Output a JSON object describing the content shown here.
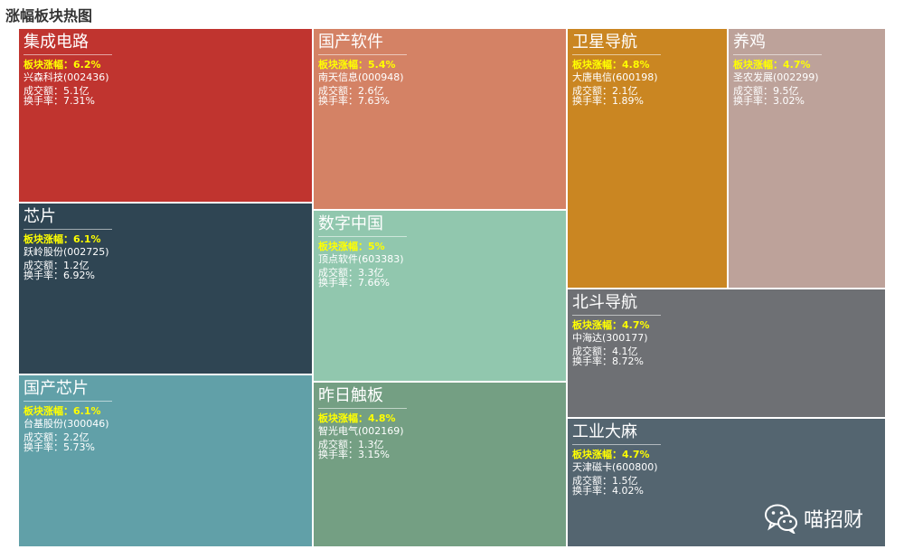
{
  "title": "涨幅板块热图",
  "chart_data": {
    "type": "treemap",
    "title": "涨幅板块热图",
    "metric_label": "板块涨幅",
    "sectors": [
      {
        "name": "集成电路",
        "change_pct": 6.2,
        "change": "板块涨幅：6.2%",
        "stock": "兴森科技(002436)",
        "volume": "成交额：5.1亿",
        "turnover": "换手率：7.31%",
        "color": "#c0342f"
      },
      {
        "name": "芯片",
        "change_pct": 6.1,
        "change": "板块涨幅：6.1%",
        "stock": "跃岭股份(002725)",
        "volume": "成交额：1.2亿",
        "turnover": "换手率：6.92%",
        "color": "#2f4553"
      },
      {
        "name": "国产芯片",
        "change_pct": 6.1,
        "change": "板块涨幅：6.1%",
        "stock": "台基股份(300046)",
        "volume": "成交额：2.2亿",
        "turnover": "换手率：5.73%",
        "color": "#61a0a8"
      },
      {
        "name": "国产软件",
        "change_pct": 5.4,
        "change": "板块涨幅：5.4%",
        "stock": "南天信息(000948)",
        "volume": "成交额：2.6亿",
        "turnover": "换手率：7.63%",
        "color": "#d48265"
      },
      {
        "name": "数字中国",
        "change_pct": 5.0,
        "change": "板块涨幅：5%",
        "stock": "顶点软件(603383)",
        "volume": "成交额：3.3亿",
        "turnover": "换手率：7.66%",
        "color": "#91c7ae"
      },
      {
        "name": "昨日触板",
        "change_pct": 4.8,
        "change": "板块涨幅：4.8%",
        "stock": "智光电气(002169)",
        "volume": "成交额：1.3亿",
        "turnover": "换手率：3.15%",
        "color": "#749f83"
      },
      {
        "name": "卫星导航",
        "change_pct": 4.8,
        "change": "板块涨幅：4.8%",
        "stock": "大唐电信(600198)",
        "volume": "成交额：2.1亿",
        "turnover": "换手率：1.89%",
        "color": "#ca8622"
      },
      {
        "name": "养鸡",
        "change_pct": 4.7,
        "change": "板块涨幅：4.7%",
        "stock": "圣农发展(002299)",
        "volume": "成交额：9.5亿",
        "turnover": "换手率：3.02%",
        "color": "#bda29a"
      },
      {
        "name": "北斗导航",
        "change_pct": 4.7,
        "change": "板块涨幅：4.7%",
        "stock": "中海达(300177)",
        "volume": "成交额：4.1亿",
        "turnover": "换手率：8.72%",
        "color": "#6e7074"
      },
      {
        "name": "工业大麻",
        "change_pct": 4.7,
        "change": "板块涨幅：4.7%",
        "stock": "天津磁卡(600800)",
        "volume": "成交额：1.5亿",
        "turnover": "换手率：4.02%",
        "color": "#546570"
      }
    ]
  },
  "watermark": {
    "text": "喵招财",
    "icon": "wechat-icon"
  }
}
